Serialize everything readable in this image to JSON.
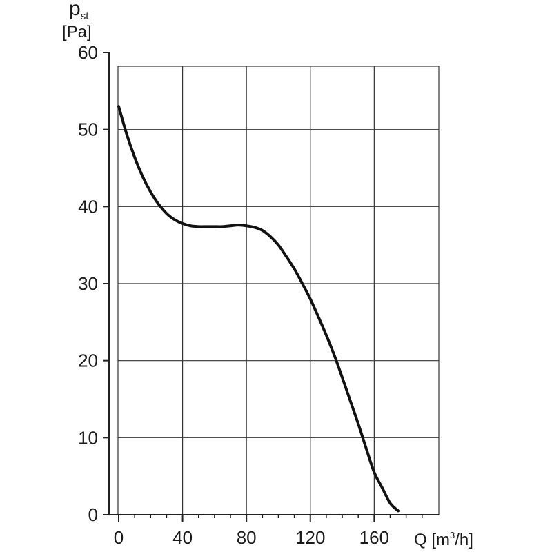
{
  "chart_data": {
    "type": "line",
    "title": "",
    "ylabel": {
      "symbol": "p",
      "subscript": "st",
      "unit": "[Pa]"
    },
    "xlabel": {
      "prefix": "Q [m",
      "superscript": "3",
      "suffix": "/h]"
    },
    "xlim": [
      0,
      200
    ],
    "ylim": [
      0,
      60
    ],
    "x_ticks": [
      0,
      40,
      80,
      120,
      160
    ],
    "x_tick_labels": [
      "0",
      "40",
      "80",
      "120",
      "160"
    ],
    "y_ticks": [
      0,
      10,
      20,
      30,
      40,
      50,
      60
    ],
    "y_tick_labels": [
      "0",
      "10",
      "20",
      "30",
      "40",
      "50",
      "60"
    ],
    "grid": true,
    "series": [
      {
        "name": "",
        "color": "#111111",
        "x": [
          0,
          5,
          10,
          15,
          20,
          25,
          30,
          35,
          40,
          45,
          50,
          55,
          60,
          65,
          70,
          75,
          80,
          85,
          90,
          95,
          100,
          105,
          110,
          115,
          120,
          125,
          130,
          135,
          140,
          145,
          150,
          155,
          160,
          165,
          170,
          175
        ],
        "y": [
          53.0,
          49.4,
          46.4,
          43.9,
          41.9,
          40.3,
          39.1,
          38.3,
          37.8,
          37.5,
          37.4,
          37.4,
          37.4,
          37.4,
          37.5,
          37.6,
          37.5,
          37.3,
          36.9,
          36.1,
          35.0,
          33.5,
          31.9,
          30.0,
          28.0,
          25.7,
          23.3,
          20.7,
          17.8,
          14.8,
          11.8,
          8.6,
          5.5,
          3.5,
          1.5,
          0.5
        ]
      }
    ]
  }
}
